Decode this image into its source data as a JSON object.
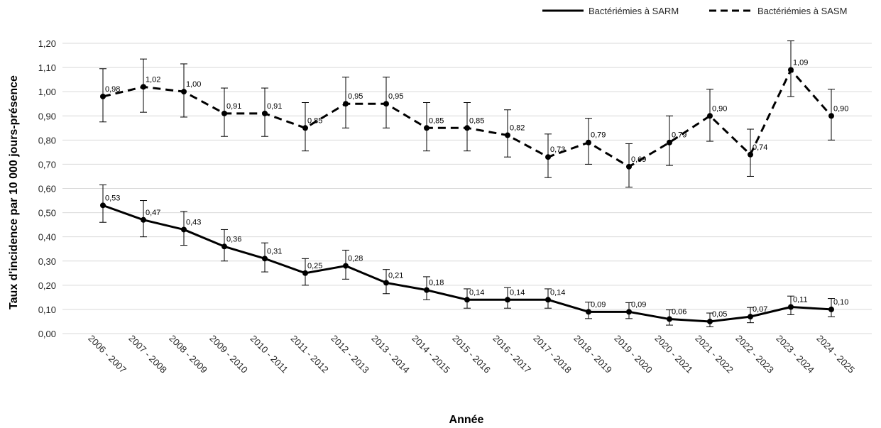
{
  "chart_data": {
    "type": "line",
    "xlabel": "Année",
    "ylabel": "Taux d'incidence par 10 000 jours-présence",
    "ylim": [
      0,
      1.2
    ],
    "y_ticks": [
      "0,00",
      "0,10",
      "0,20",
      "0,30",
      "0,40",
      "0,50",
      "0,60",
      "0,70",
      "0,80",
      "0,90",
      "1,00",
      "1,10",
      "1,20"
    ],
    "grid": true,
    "legend_position": "top-right",
    "categories": [
      "2006 - 2007",
      "2007 - 2008",
      "2008 - 2009",
      "2009 - 2010",
      "2010 - 2011",
      "2011 - 2012",
      "2012 - 2013",
      "2013 - 2014",
      "2014 - 2015",
      "2015 - 2016",
      "2016 - 2017",
      "2017 - 2018",
      "2018 - 2019",
      "2019 - 2020",
      "2020 - 2021",
      "2021 - 2022",
      "2022 - 2023",
      "2023 - 2024",
      "2024 - 2025"
    ],
    "series": [
      {
        "name": "Bactériémies à SARM",
        "line_style": "solid",
        "color": "#000000",
        "values": [
          0.53,
          0.47,
          0.43,
          0.36,
          0.31,
          0.25,
          0.28,
          0.21,
          0.18,
          0.14,
          0.14,
          0.14,
          0.09,
          0.09,
          0.06,
          0.05,
          0.07,
          0.11,
          0.1
        ],
        "labels": [
          "0,53",
          "0,47",
          "0,43",
          "0,36",
          "0,31",
          "0,25",
          "0,28",
          "0,21",
          "0,18",
          "0,14",
          "0,14",
          "0,14",
          "0,09",
          "0,09",
          "0,06",
          "0,05",
          "0,07",
          "0,11",
          "0,10"
        ],
        "error_lower": [
          0.46,
          0.4,
          0.365,
          0.3,
          0.255,
          0.2,
          0.225,
          0.165,
          0.14,
          0.105,
          0.105,
          0.105,
          0.062,
          0.062,
          0.035,
          0.028,
          0.045,
          0.078,
          0.07
        ],
        "error_upper": [
          0.615,
          0.55,
          0.505,
          0.43,
          0.375,
          0.31,
          0.345,
          0.265,
          0.235,
          0.185,
          0.19,
          0.185,
          0.13,
          0.128,
          0.098,
          0.085,
          0.108,
          0.155,
          0.145
        ]
      },
      {
        "name": "Bactériémies à SASM",
        "line_style": "dashed",
        "color": "#000000",
        "values": [
          0.98,
          1.02,
          1.0,
          0.91,
          0.91,
          0.85,
          0.95,
          0.95,
          0.85,
          0.85,
          0.82,
          0.73,
          0.79,
          0.69,
          0.79,
          0.9,
          0.74,
          1.09,
          0.9
        ],
        "labels": [
          "0,98",
          "1,02",
          "1,00",
          "0,91",
          "0,91",
          "0,85",
          "0,95",
          "0,95",
          "0,85",
          "0,85",
          "0,82",
          "0,73",
          "0,79",
          "0,69",
          "0,79",
          "0,90",
          "0,74",
          "1,09",
          "0,90"
        ],
        "error_lower": [
          0.875,
          0.915,
          0.895,
          0.815,
          0.815,
          0.755,
          0.85,
          0.85,
          0.755,
          0.755,
          0.73,
          0.645,
          0.7,
          0.605,
          0.695,
          0.795,
          0.65,
          0.98,
          0.8
        ],
        "error_upper": [
          1.095,
          1.135,
          1.115,
          1.015,
          1.015,
          0.955,
          1.06,
          1.06,
          0.955,
          0.955,
          0.925,
          0.825,
          0.89,
          0.785,
          0.9,
          1.01,
          0.845,
          1.21,
          1.01
        ]
      }
    ]
  }
}
